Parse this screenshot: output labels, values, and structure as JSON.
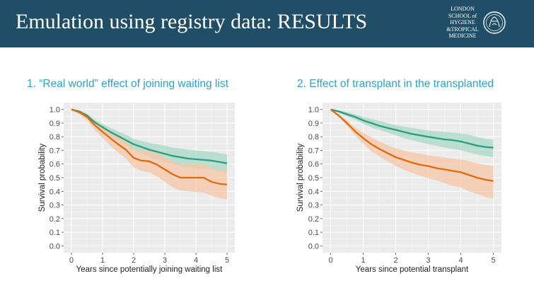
{
  "slide": {
    "title": "Emulation using registry data: RESULTS",
    "logo_text": [
      "LONDON",
      "SCHOOL of",
      "HYGIENE",
      "&TROPICAL",
      "MEDICINE"
    ],
    "header_color": "#1f4e66",
    "subtitle_color": "#2aa3c6"
  },
  "chart_data": [
    {
      "type": "line",
      "subtitle": "1. “Real world” effect of joining waiting list",
      "xlabel": "Years since potentially joining waiting list",
      "ylabel": "Survival probability",
      "xlim": [
        -0.25,
        5.25
      ],
      "ylim": [
        -0.05,
        1.05
      ],
      "xticks": [
        0,
        1,
        2,
        3,
        4,
        5
      ],
      "yticks": [
        0.0,
        0.1,
        0.2,
        0.3,
        0.4,
        0.5,
        0.6,
        0.7,
        0.8,
        0.9,
        1.0
      ],
      "grid": true,
      "series": [
        {
          "color": "#2a9d7e",
          "band_color": "#a8d8c6",
          "x": [
            0,
            0.25,
            0.5,
            0.75,
            1.0,
            1.25,
            1.5,
            1.75,
            2.0,
            2.25,
            2.5,
            2.75,
            3.0,
            3.25,
            3.5,
            3.75,
            4.0,
            4.25,
            4.5,
            4.75,
            5.0
          ],
          "y": [
            1.0,
            0.985,
            0.955,
            0.905,
            0.87,
            0.835,
            0.805,
            0.775,
            0.745,
            0.725,
            0.705,
            0.69,
            0.675,
            0.66,
            0.65,
            0.64,
            0.635,
            0.63,
            0.625,
            0.615,
            0.605
          ],
          "lower": [
            1.0,
            0.975,
            0.94,
            0.885,
            0.845,
            0.805,
            0.77,
            0.735,
            0.705,
            0.68,
            0.655,
            0.635,
            0.615,
            0.6,
            0.585,
            0.575,
            0.57,
            0.565,
            0.56,
            0.55,
            0.54
          ],
          "upper": [
            1.0,
            0.995,
            0.97,
            0.925,
            0.895,
            0.865,
            0.84,
            0.815,
            0.785,
            0.77,
            0.755,
            0.745,
            0.735,
            0.72,
            0.715,
            0.705,
            0.7,
            0.695,
            0.69,
            0.68,
            0.67
          ]
        },
        {
          "color": "#e06a10",
          "band_color": "#f6c6a6",
          "x": [
            0,
            0.25,
            0.5,
            0.75,
            1.0,
            1.25,
            1.5,
            1.75,
            2.0,
            2.25,
            2.5,
            2.75,
            3.0,
            3.25,
            3.5,
            3.75,
            4.0,
            4.25,
            4.5,
            4.75,
            5.0
          ],
          "y": [
            1.0,
            0.98,
            0.945,
            0.885,
            0.835,
            0.79,
            0.745,
            0.705,
            0.645,
            0.625,
            0.62,
            0.595,
            0.56,
            0.525,
            0.5,
            0.5,
            0.5,
            0.5,
            0.47,
            0.455,
            0.45
          ],
          "lower": [
            1.0,
            0.965,
            0.92,
            0.85,
            0.79,
            0.735,
            0.685,
            0.64,
            0.575,
            0.55,
            0.54,
            0.51,
            0.47,
            0.43,
            0.405,
            0.4,
            0.395,
            0.39,
            0.37,
            0.35,
            0.34
          ],
          "upper": [
            1.0,
            0.995,
            0.97,
            0.92,
            0.88,
            0.845,
            0.805,
            0.77,
            0.715,
            0.7,
            0.7,
            0.68,
            0.65,
            0.62,
            0.595,
            0.6,
            0.6,
            0.605,
            0.57,
            0.56,
            0.56
          ]
        }
      ]
    },
    {
      "type": "line",
      "subtitle": "2. Effect of transplant in the transplanted",
      "xlabel": "Years since potential transplant",
      "ylabel": "Survival probability",
      "xlim": [
        -0.25,
        5.25
      ],
      "ylim": [
        -0.05,
        1.05
      ],
      "xticks": [
        0,
        1,
        2,
        3,
        4,
        5
      ],
      "yticks": [
        0.0,
        0.1,
        0.2,
        0.3,
        0.4,
        0.5,
        0.6,
        0.7,
        0.8,
        0.9,
        1.0
      ],
      "grid": true,
      "series": [
        {
          "color": "#2a9d7e",
          "band_color": "#a8d8c6",
          "x": [
            0,
            0.25,
            0.5,
            0.75,
            1.0,
            1.25,
            1.5,
            1.75,
            2.0,
            2.25,
            2.5,
            2.75,
            3.0,
            3.25,
            3.5,
            3.75,
            4.0,
            4.25,
            4.5,
            4.75,
            5.0
          ],
          "y": [
            1.0,
            0.985,
            0.965,
            0.945,
            0.92,
            0.9,
            0.88,
            0.865,
            0.85,
            0.835,
            0.82,
            0.81,
            0.8,
            0.79,
            0.78,
            0.775,
            0.765,
            0.75,
            0.735,
            0.725,
            0.72
          ],
          "lower": [
            1.0,
            0.975,
            0.95,
            0.925,
            0.895,
            0.87,
            0.85,
            0.83,
            0.81,
            0.79,
            0.775,
            0.76,
            0.745,
            0.735,
            0.72,
            0.71,
            0.7,
            0.685,
            0.67,
            0.66,
            0.65
          ],
          "upper": [
            1.0,
            0.995,
            0.98,
            0.965,
            0.945,
            0.93,
            0.915,
            0.9,
            0.885,
            0.875,
            0.865,
            0.855,
            0.845,
            0.84,
            0.835,
            0.83,
            0.825,
            0.815,
            0.8,
            0.785,
            0.78
          ]
        },
        {
          "color": "#e06a10",
          "band_color": "#f6c6a6",
          "x": [
            0,
            0.25,
            0.5,
            0.75,
            1.0,
            1.25,
            1.5,
            1.75,
            2.0,
            2.25,
            2.5,
            2.75,
            3.0,
            3.25,
            3.5,
            3.75,
            4.0,
            4.25,
            4.5,
            4.75,
            5.0
          ],
          "y": [
            1.0,
            0.955,
            0.9,
            0.84,
            0.79,
            0.745,
            0.71,
            0.68,
            0.65,
            0.63,
            0.61,
            0.595,
            0.585,
            0.57,
            0.56,
            0.55,
            0.54,
            0.52,
            0.5,
            0.485,
            0.475
          ],
          "lower": [
            1.0,
            0.945,
            0.88,
            0.81,
            0.75,
            0.695,
            0.655,
            0.62,
            0.585,
            0.56,
            0.535,
            0.515,
            0.495,
            0.48,
            0.46,
            0.44,
            0.43,
            0.4,
            0.38,
            0.36,
            0.345
          ],
          "upper": [
            1.0,
            0.965,
            0.92,
            0.87,
            0.83,
            0.795,
            0.765,
            0.74,
            0.715,
            0.7,
            0.685,
            0.675,
            0.665,
            0.655,
            0.65,
            0.64,
            0.635,
            0.62,
            0.605,
            0.595,
            0.585
          ]
        }
      ]
    }
  ]
}
